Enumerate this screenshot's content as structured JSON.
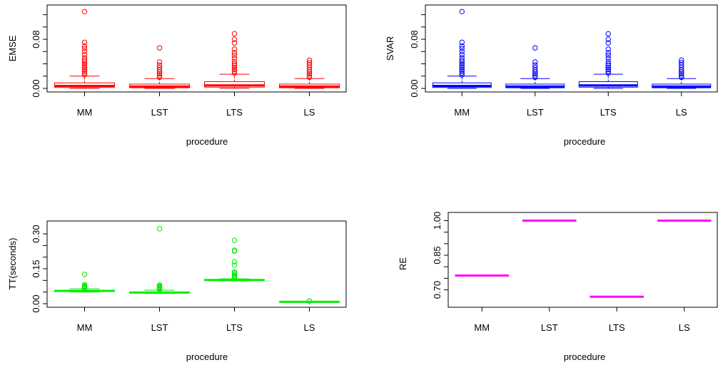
{
  "chart_data": [
    {
      "type": "box",
      "xlabel": "procedure",
      "ylabel": "EMSE",
      "color": "#ff0000",
      "categories": [
        "MM",
        "LST",
        "LTS",
        "LS"
      ],
      "ylim": [
        0,
        0.13
      ],
      "yticks": [
        0.0,
        0.02,
        0.04,
        0.06,
        0.08,
        0.1,
        0.12
      ],
      "ytick_labels": [
        "0.00",
        "",
        "",
        "",
        "0.08",
        "",
        ""
      ],
      "boxes": [
        {
          "whisker_low": 0.0,
          "q1": 0.0015,
          "median": 0.004,
          "q3": 0.009,
          "whisker_high": 0.02,
          "outliers": [
            0.022,
            0.025,
            0.028,
            0.031,
            0.034,
            0.037,
            0.04,
            0.043,
            0.046,
            0.05,
            0.055,
            0.06,
            0.065,
            0.069,
            0.075,
            0.125
          ]
        },
        {
          "whisker_low": 0.0,
          "q1": 0.001,
          "median": 0.003,
          "q3": 0.007,
          "whisker_high": 0.016,
          "outliers": [
            0.018,
            0.021,
            0.024,
            0.027,
            0.03,
            0.034,
            0.038,
            0.043,
            0.066
          ]
        },
        {
          "whisker_low": 0.0,
          "q1": 0.002,
          "median": 0.005,
          "q3": 0.011,
          "whisker_high": 0.023,
          "outliers": [
            0.025,
            0.028,
            0.031,
            0.034,
            0.037,
            0.04,
            0.044,
            0.049,
            0.054,
            0.058,
            0.064,
            0.074,
            0.08,
            0.089
          ]
        },
        {
          "whisker_low": 0.0,
          "q1": 0.001,
          "median": 0.003,
          "q3": 0.007,
          "whisker_high": 0.016,
          "outliers": [
            0.018,
            0.021,
            0.024,
            0.027,
            0.03,
            0.034,
            0.038,
            0.042,
            0.046
          ]
        }
      ]
    },
    {
      "type": "box",
      "xlabel": "procedure",
      "ylabel": "SVAR",
      "color": "#0000ff",
      "categories": [
        "MM",
        "LST",
        "LTS",
        "LS"
      ],
      "ylim": [
        0,
        0.13
      ],
      "yticks": [
        0.0,
        0.02,
        0.04,
        0.06,
        0.08,
        0.1,
        0.12
      ],
      "ytick_labels": [
        "0.00",
        "",
        "",
        "",
        "0.08",
        "",
        ""
      ],
      "boxes": [
        {
          "whisker_low": 0.0,
          "q1": 0.0015,
          "median": 0.004,
          "q3": 0.009,
          "whisker_high": 0.02,
          "outliers": [
            0.022,
            0.025,
            0.028,
            0.031,
            0.034,
            0.037,
            0.04,
            0.043,
            0.046,
            0.05,
            0.055,
            0.06,
            0.065,
            0.069,
            0.075,
            0.125
          ]
        },
        {
          "whisker_low": 0.0,
          "q1": 0.001,
          "median": 0.003,
          "q3": 0.007,
          "whisker_high": 0.016,
          "outliers": [
            0.018,
            0.021,
            0.024,
            0.027,
            0.03,
            0.034,
            0.038,
            0.043,
            0.066
          ]
        },
        {
          "whisker_low": 0.0,
          "q1": 0.002,
          "median": 0.005,
          "q3": 0.011,
          "whisker_high": 0.023,
          "outliers": [
            0.025,
            0.028,
            0.031,
            0.034,
            0.037,
            0.04,
            0.044,
            0.049,
            0.054,
            0.058,
            0.064,
            0.074,
            0.08,
            0.089
          ]
        },
        {
          "whisker_low": 0.0,
          "q1": 0.001,
          "median": 0.003,
          "q3": 0.007,
          "whisker_high": 0.016,
          "outliers": [
            0.018,
            0.021,
            0.024,
            0.027,
            0.03,
            0.034,
            0.038,
            0.042,
            0.046
          ]
        }
      ]
    },
    {
      "type": "box",
      "xlabel": "procedure",
      "ylabel": "TT(seconds)",
      "color": "#00ee00",
      "categories": [
        "MM",
        "LST",
        "LTS",
        "LS"
      ],
      "ylim": [
        0,
        0.34
      ],
      "yticks": [
        0.0,
        0.05,
        0.1,
        0.15,
        0.2,
        0.25,
        0.3
      ],
      "ytick_labels": [
        "0.00",
        "",
        "",
        "0.15",
        "",
        "",
        "0.30"
      ],
      "boxes": [
        {
          "whisker_low": 0.05,
          "q1": 0.052,
          "median": 0.055,
          "q3": 0.058,
          "whisker_high": 0.064,
          "outliers": [
            0.066,
            0.068,
            0.071,
            0.074,
            0.077,
            0.082,
            0.126
          ]
        },
        {
          "whisker_low": 0.044,
          "q1": 0.046,
          "median": 0.048,
          "q3": 0.05,
          "whisker_high": 0.058,
          "outliers": [
            0.06,
            0.063,
            0.066,
            0.069,
            0.072,
            0.076,
            0.08,
            0.322
          ]
        },
        {
          "whisker_low": 0.098,
          "q1": 0.1,
          "median": 0.102,
          "q3": 0.104,
          "whisker_high": 0.107,
          "outliers": [
            0.11,
            0.114,
            0.118,
            0.122,
            0.127,
            0.132,
            0.137,
            0.166,
            0.18,
            0.225,
            0.23,
            0.272
          ]
        },
        {
          "whisker_low": 0.006,
          "q1": 0.007,
          "median": 0.008,
          "q3": 0.009,
          "whisker_high": 0.01,
          "outliers": [
            0.011,
            0.012
          ]
        }
      ]
    },
    {
      "type": "box",
      "xlabel": "procedure",
      "ylabel": "RE",
      "color": "#ff00ff",
      "categories": [
        "MM",
        "LST",
        "LTS",
        "LS"
      ],
      "ylim": [
        0.64,
        1.02
      ],
      "yticks": [
        0.7,
        0.75,
        0.8,
        0.85,
        0.9,
        0.95,
        1.0
      ],
      "ytick_labels": [
        "0.70",
        "",
        "",
        "0.85",
        "",
        "",
        "1.00"
      ],
      "boxes": [
        {
          "whisker_low": 0.762,
          "q1": 0.762,
          "median": 0.762,
          "q3": 0.762,
          "whisker_high": 0.762,
          "outliers": []
        },
        {
          "whisker_low": 1.0,
          "q1": 1.0,
          "median": 1.0,
          "q3": 1.0,
          "whisker_high": 1.0,
          "outliers": []
        },
        {
          "whisker_low": 0.67,
          "q1": 0.67,
          "median": 0.67,
          "q3": 0.67,
          "whisker_high": 0.67,
          "outliers": []
        },
        {
          "whisker_low": 1.0,
          "q1": 1.0,
          "median": 1.0,
          "q3": 1.0,
          "whisker_high": 1.0,
          "outliers": []
        }
      ]
    }
  ]
}
